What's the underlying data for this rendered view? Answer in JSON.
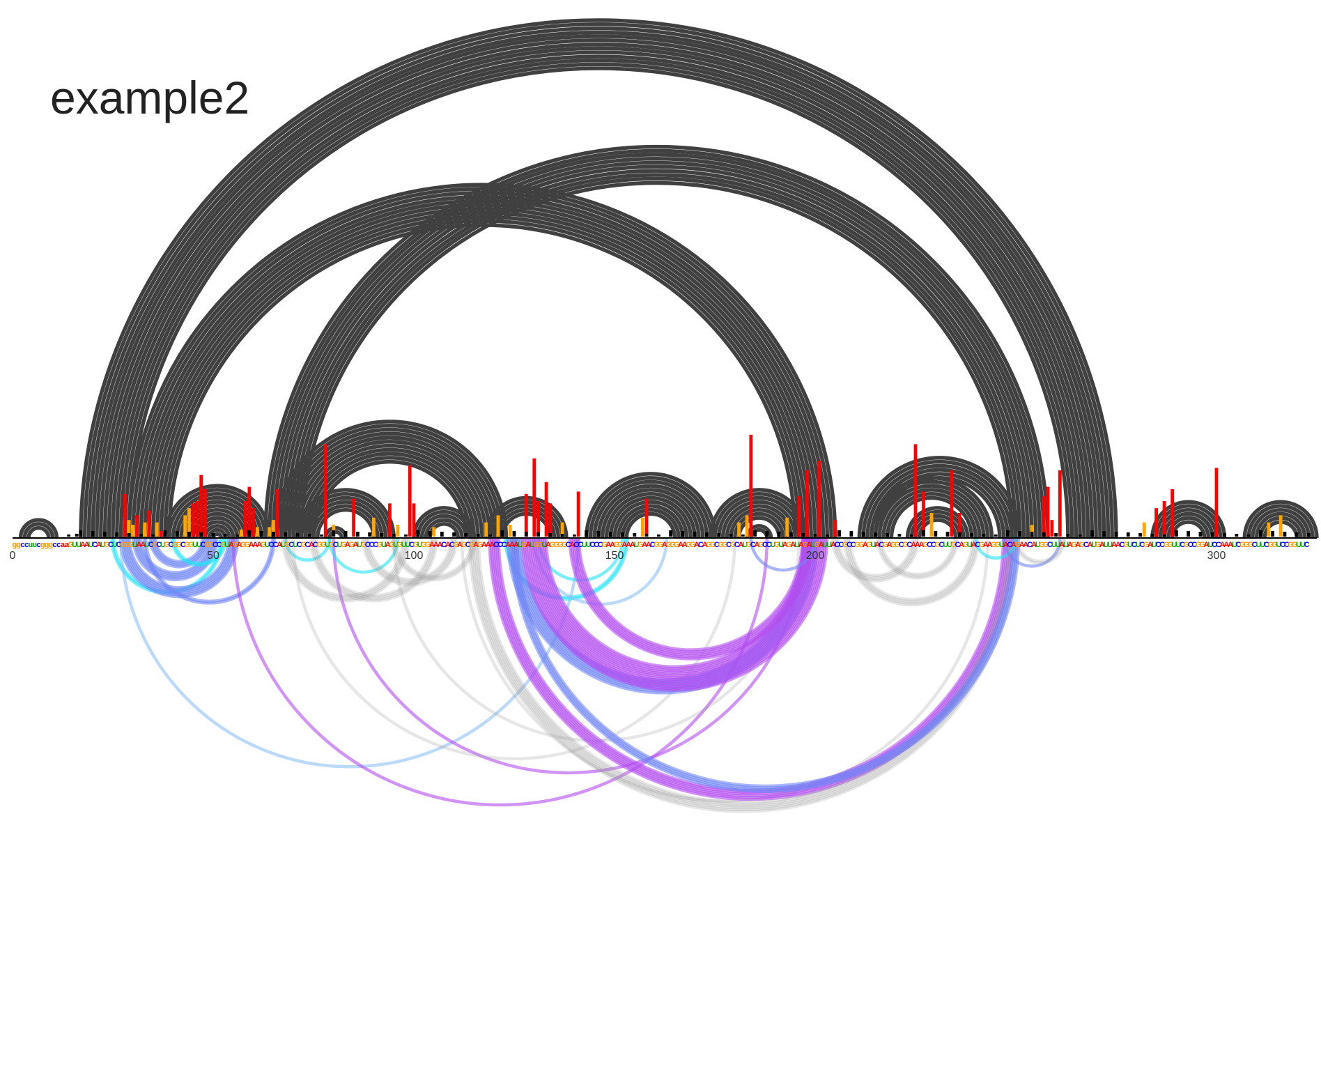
{
  "title": "example2",
  "axis": {
    "ticks": [
      "0",
      "50",
      "100",
      "150",
      "200",
      "300"
    ]
  },
  "sequence": "ggccuucgggccaaGUUAAUCAUGCUCGGGUAAUCGCUGCGGCGGUUCGGCCGUAGAGGAAAGUCCAUGCUCGCACGGUGCUGAGAUGCCCGUAGUGUUCGUGGAAACACGAGCGAGAAACCCAAAUGAUGGUAGGGGCACCUUCCCGAAGGAAAUGAACGGAGGGAAGGACAGGCGGCGCAUGCAGCCUGUAGAUAGAUGAUUACCGCCGGAGUACGAGGCGCAAAGCCGCUUGCAGUACGAAGGUACAGAACAUGGCUUAUAGAGCAUGAUUAACGUCUCGAUCCGGUUCGCCGGAUCCAAAUCGGGCUUCGGUCCGGUUC",
  "colors": {
    "A": "#ff0000",
    "C": "#0000ff",
    "G": "#ff9900",
    "U": "#00aa00",
    "pair_arc": "#404040",
    "bar_high": "#ff0000",
    "bar_mid": "#ffa500",
    "bar_low": "#000000",
    "lower_cyan": "#22e5f5",
    "lower_blue": "#6f86f5",
    "lower_purple": "#b34cf0",
    "lower_lightblue": "#8ec2f5",
    "lower_gray": "#9a9a9a"
  },
  "chart_data": {
    "type": "arc-diagram",
    "title": "example2",
    "sequence_length": 325,
    "xlim": [
      0,
      325
    ],
    "helices_top": [
      {
        "start": 2,
        "end": 11,
        "width": 3
      },
      {
        "start": 17,
        "end": 275,
        "width": 13
      },
      {
        "start": 29,
        "end": 205,
        "width": 11
      },
      {
        "start": 38,
        "end": 64,
        "width": 13
      },
      {
        "start": 63,
        "end": 258,
        "width": 10
      },
      {
        "start": 65,
        "end": 123,
        "width": 11
      },
      {
        "start": 71,
        "end": 95,
        "width": 6
      },
      {
        "start": 78,
        "end": 83,
        "width": 2
      },
      {
        "start": 100,
        "end": 115,
        "width": 5
      },
      {
        "start": 118,
        "end": 138,
        "width": 5
      },
      {
        "start": 143,
        "end": 175,
        "width": 10
      },
      {
        "start": 152,
        "end": 166,
        "width": 2
      },
      {
        "start": 174,
        "end": 198,
        "width": 8
      },
      {
        "start": 183,
        "end": 189,
        "width": 2
      },
      {
        "start": 211,
        "end": 251,
        "width": 6
      },
      {
        "start": 214,
        "end": 244,
        "width": 6
      },
      {
        "start": 223,
        "end": 238,
        "width": 4
      },
      {
        "start": 284,
        "end": 302,
        "width": 6
      },
      {
        "start": 307,
        "end": 325,
        "width": 6
      }
    ],
    "arcs_bottom": [
      {
        "start": 25,
        "end": 52,
        "category": "cyan",
        "weight": 2
      },
      {
        "start": 28,
        "end": 55,
        "category": "blue",
        "weight": 6
      },
      {
        "start": 31,
        "end": 50,
        "category": "blue",
        "weight": 5
      },
      {
        "start": 35,
        "end": 48,
        "category": "blue",
        "weight": 4
      },
      {
        "start": 40,
        "end": 53,
        "category": "cyan",
        "weight": 2
      },
      {
        "start": 33,
        "end": 65,
        "category": "blue",
        "weight": 2
      },
      {
        "start": 27,
        "end": 141,
        "category": "lightblue",
        "weight": 1
      },
      {
        "start": 80,
        "end": 197,
        "category": "purple",
        "weight": 1
      },
      {
        "start": 55,
        "end": 188,
        "category": "purple",
        "weight": 1
      },
      {
        "start": 68,
        "end": 79,
        "category": "cyan",
        "weight": 1
      },
      {
        "start": 79,
        "end": 96,
        "category": "cyan",
        "weight": 1
      },
      {
        "start": 68,
        "end": 98,
        "category": "gray",
        "weight": 4
      },
      {
        "start": 75,
        "end": 105,
        "category": "gray",
        "weight": 4
      },
      {
        "start": 88,
        "end": 110,
        "category": "gray",
        "weight": 4
      },
      {
        "start": 95,
        "end": 115,
        "category": "gray",
        "weight": 3
      },
      {
        "start": 70,
        "end": 180,
        "category": "gray",
        "weight": 1
      },
      {
        "start": 95,
        "end": 196,
        "category": "gray",
        "weight": 1
      },
      {
        "start": 112,
        "end": 243,
        "category": "gray",
        "weight": 1
      },
      {
        "start": 123,
        "end": 153,
        "category": "cyan",
        "weight": 2
      },
      {
        "start": 131,
        "end": 152,
        "category": "cyan",
        "weight": 1
      },
      {
        "start": 130,
        "end": 163,
        "category": "lightblue",
        "weight": 1
      },
      {
        "start": 125,
        "end": 199,
        "category": "blue",
        "weight": 8
      },
      {
        "start": 130,
        "end": 200,
        "category": "purple",
        "weight": 14
      },
      {
        "start": 140,
        "end": 198,
        "category": "purple",
        "weight": 6
      },
      {
        "start": 120,
        "end": 248,
        "category": "purple",
        "weight": 6
      },
      {
        "start": 115,
        "end": 249,
        "category": "gray",
        "weight": 6
      },
      {
        "start": 125,
        "end": 250,
        "category": "blue",
        "weight": 4
      },
      {
        "start": 184,
        "end": 200,
        "category": "blue",
        "weight": 1
      },
      {
        "start": 205,
        "end": 225,
        "category": "gray",
        "weight": 4
      },
      {
        "start": 208,
        "end": 240,
        "category": "gray",
        "weight": 4
      },
      {
        "start": 216,
        "end": 235,
        "category": "gray",
        "weight": 3
      },
      {
        "start": 240,
        "end": 250,
        "category": "cyan",
        "weight": 1
      },
      {
        "start": 247,
        "end": 261,
        "category": "blue",
        "weight": 1
      },
      {
        "start": 250,
        "end": 262,
        "category": "gray",
        "weight": 2
      }
    ],
    "bars": [
      {
        "pos": 16,
        "value": 0.06,
        "level": "low"
      },
      {
        "pos": 28,
        "value": 0.9,
        "level": "high"
      },
      {
        "pos": 29,
        "value": 0.35,
        "level": "mid"
      },
      {
        "pos": 30,
        "value": 0.25,
        "level": "mid"
      },
      {
        "pos": 31,
        "value": 0.45,
        "level": "high"
      },
      {
        "pos": 33,
        "value": 0.3,
        "level": "mid"
      },
      {
        "pos": 34,
        "value": 0.55,
        "level": "high"
      },
      {
        "pos": 36,
        "value": 0.3,
        "level": "mid"
      },
      {
        "pos": 37,
        "value": 0.12,
        "level": "high"
      },
      {
        "pos": 43,
        "value": 0.45,
        "level": "mid"
      },
      {
        "pos": 44,
        "value": 0.6,
        "level": "mid"
      },
      {
        "pos": 45,
        "value": 0.7,
        "level": "high"
      },
      {
        "pos": 46,
        "value": 0.75,
        "level": "high"
      },
      {
        "pos": 47,
        "value": 1.3,
        "level": "high"
      },
      {
        "pos": 48,
        "value": 1.0,
        "level": "high"
      },
      {
        "pos": 57,
        "value": 0.15,
        "level": "mid"
      },
      {
        "pos": 58,
        "value": 0.75,
        "level": "high"
      },
      {
        "pos": 59,
        "value": 1.05,
        "level": "high"
      },
      {
        "pos": 60,
        "value": 0.6,
        "level": "high"
      },
      {
        "pos": 61,
        "value": 0.2,
        "level": "mid"
      },
      {
        "pos": 64,
        "value": 0.2,
        "level": "mid"
      },
      {
        "pos": 65,
        "value": 0.35,
        "level": "mid"
      },
      {
        "pos": 66,
        "value": 1.0,
        "level": "high"
      },
      {
        "pos": 78,
        "value": 1.95,
        "level": "high"
      },
      {
        "pos": 80,
        "value": 0.25,
        "level": "mid"
      },
      {
        "pos": 85,
        "value": 0.8,
        "level": "high"
      },
      {
        "pos": 90,
        "value": 0.4,
        "level": "mid"
      },
      {
        "pos": 94,
        "value": 0.7,
        "level": "high"
      },
      {
        "pos": 96,
        "value": 0.25,
        "level": "mid"
      },
      {
        "pos": 99,
        "value": 1.5,
        "level": "high"
      },
      {
        "pos": 100,
        "value": 0.7,
        "level": "high"
      },
      {
        "pos": 105,
        "value": 0.2,
        "level": "mid"
      },
      {
        "pos": 118,
        "value": 0.3,
        "level": "mid"
      },
      {
        "pos": 121,
        "value": 0.45,
        "level": "mid"
      },
      {
        "pos": 124,
        "value": 0.25,
        "level": "mid"
      },
      {
        "pos": 128,
        "value": 0.9,
        "level": "high"
      },
      {
        "pos": 130,
        "value": 1.65,
        "level": "high"
      },
      {
        "pos": 131,
        "value": 0.75,
        "level": "high"
      },
      {
        "pos": 133,
        "value": 1.15,
        "level": "high"
      },
      {
        "pos": 134,
        "value": 0.7,
        "level": "high"
      },
      {
        "pos": 137,
        "value": 0.3,
        "level": "mid"
      },
      {
        "pos": 141,
        "value": 0.95,
        "level": "high"
      },
      {
        "pos": 157,
        "value": 0.4,
        "level": "mid"
      },
      {
        "pos": 158,
        "value": 0.8,
        "level": "high"
      },
      {
        "pos": 181,
        "value": 0.3,
        "level": "mid"
      },
      {
        "pos": 183,
        "value": 0.45,
        "level": "mid"
      },
      {
        "pos": 184,
        "value": 2.15,
        "level": "high"
      },
      {
        "pos": 193,
        "value": 0.4,
        "level": "mid"
      },
      {
        "pos": 196,
        "value": 0.85,
        "level": "high"
      },
      {
        "pos": 198,
        "value": 1.4,
        "level": "high"
      },
      {
        "pos": 201,
        "value": 1.6,
        "level": "high"
      },
      {
        "pos": 205,
        "value": 0.35,
        "level": "high"
      },
      {
        "pos": 225,
        "value": 1.95,
        "level": "high"
      },
      {
        "pos": 227,
        "value": 0.95,
        "level": "high"
      },
      {
        "pos": 229,
        "value": 0.5,
        "level": "mid"
      },
      {
        "pos": 234,
        "value": 1.4,
        "level": "high"
      },
      {
        "pos": 236,
        "value": 0.5,
        "level": "high"
      },
      {
        "pos": 254,
        "value": 0.25,
        "level": "mid"
      },
      {
        "pos": 257,
        "value": 0.85,
        "level": "high"
      },
      {
        "pos": 258,
        "value": 1.05,
        "level": "high"
      },
      {
        "pos": 259,
        "value": 0.35,
        "level": "high"
      },
      {
        "pos": 261,
        "value": 1.4,
        "level": "high"
      },
      {
        "pos": 282,
        "value": 0.3,
        "level": "mid"
      },
      {
        "pos": 285,
        "value": 0.6,
        "level": "high"
      },
      {
        "pos": 287,
        "value": 0.75,
        "level": "high"
      },
      {
        "pos": 289,
        "value": 1.0,
        "level": "high"
      },
      {
        "pos": 300,
        "value": 1.45,
        "level": "high"
      },
      {
        "pos": 313,
        "value": 0.3,
        "level": "mid"
      },
      {
        "pos": 316,
        "value": 0.45,
        "level": "mid"
      }
    ]
  }
}
